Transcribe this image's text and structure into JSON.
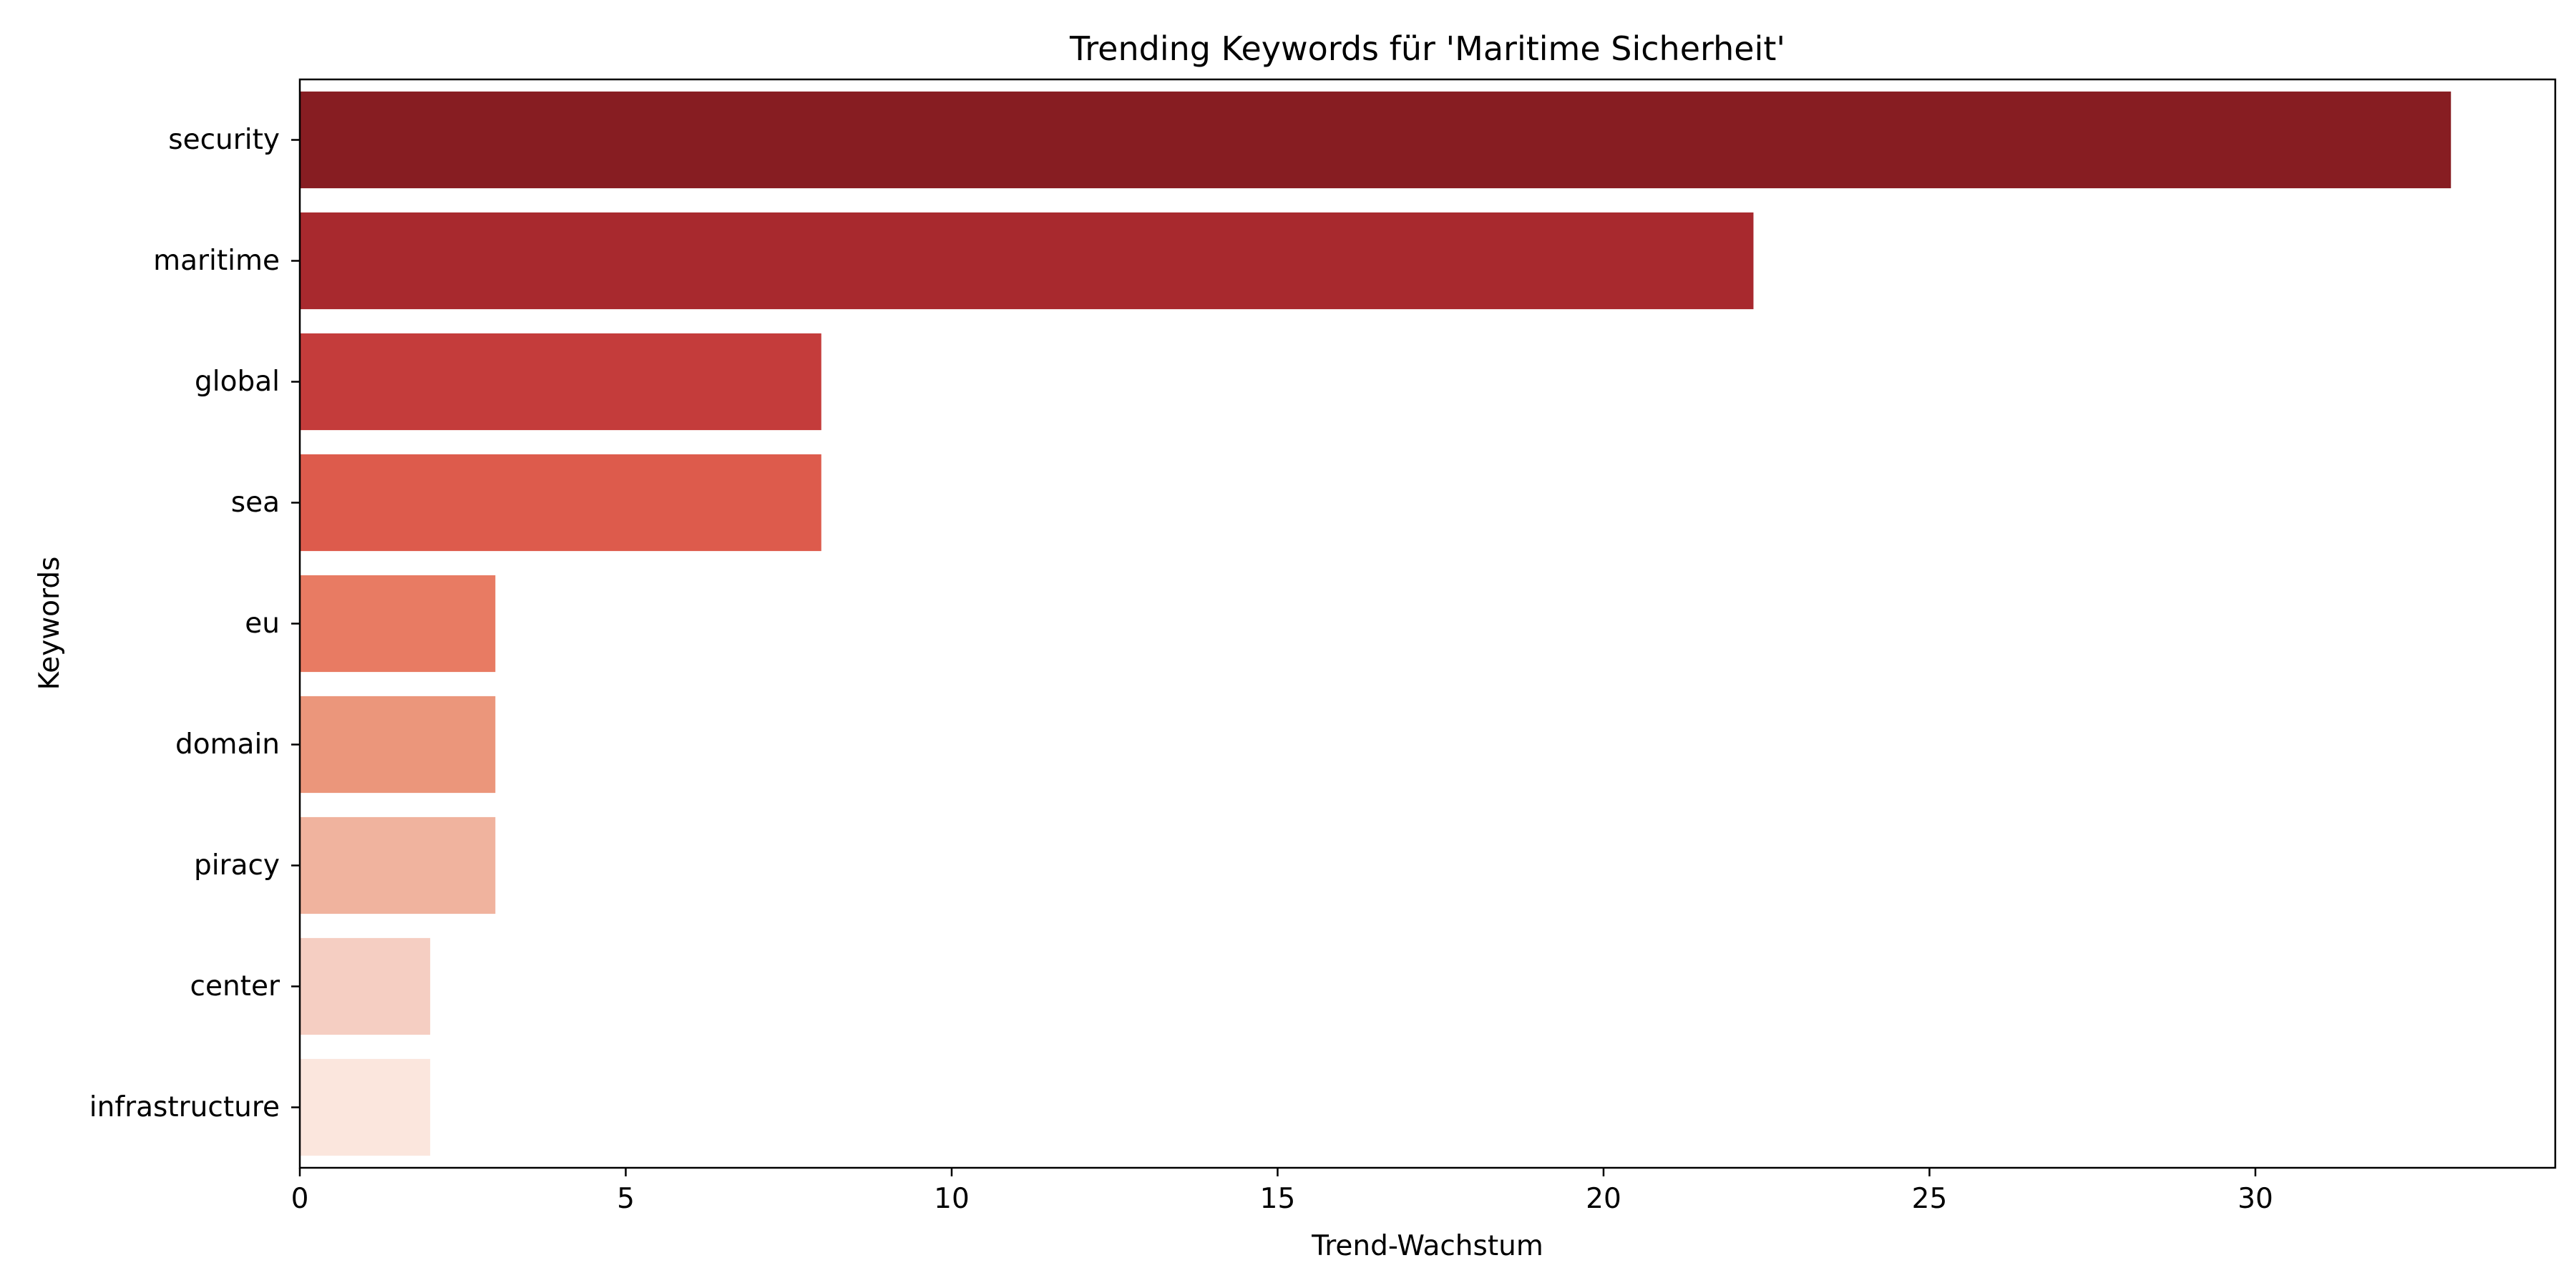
{
  "chart_data": {
    "type": "bar",
    "orientation": "horizontal",
    "title": "Trending Keywords für 'Maritime Sicherheit'",
    "xlabel": "Trend-Wachstum",
    "ylabel": "Keywords",
    "categories": [
      "security",
      "maritime",
      "global",
      "sea",
      "eu",
      "domain",
      "piracy",
      "center",
      "infrastructure"
    ],
    "values": [
      33,
      22.3,
      8,
      8,
      3,
      3,
      3,
      2,
      2
    ],
    "colors": [
      "#871d22",
      "#a8292e",
      "#c43c3b",
      "#dd5b4c",
      "#e87b63",
      "#eb967b",
      "#f0b39e",
      "#f5cec2",
      "#fbe6dd"
    ],
    "xlim": [
      0,
      34.6
    ],
    "xticks": [
      0,
      5,
      10,
      15,
      20,
      25,
      30
    ],
    "grid": false,
    "legend": "none"
  }
}
